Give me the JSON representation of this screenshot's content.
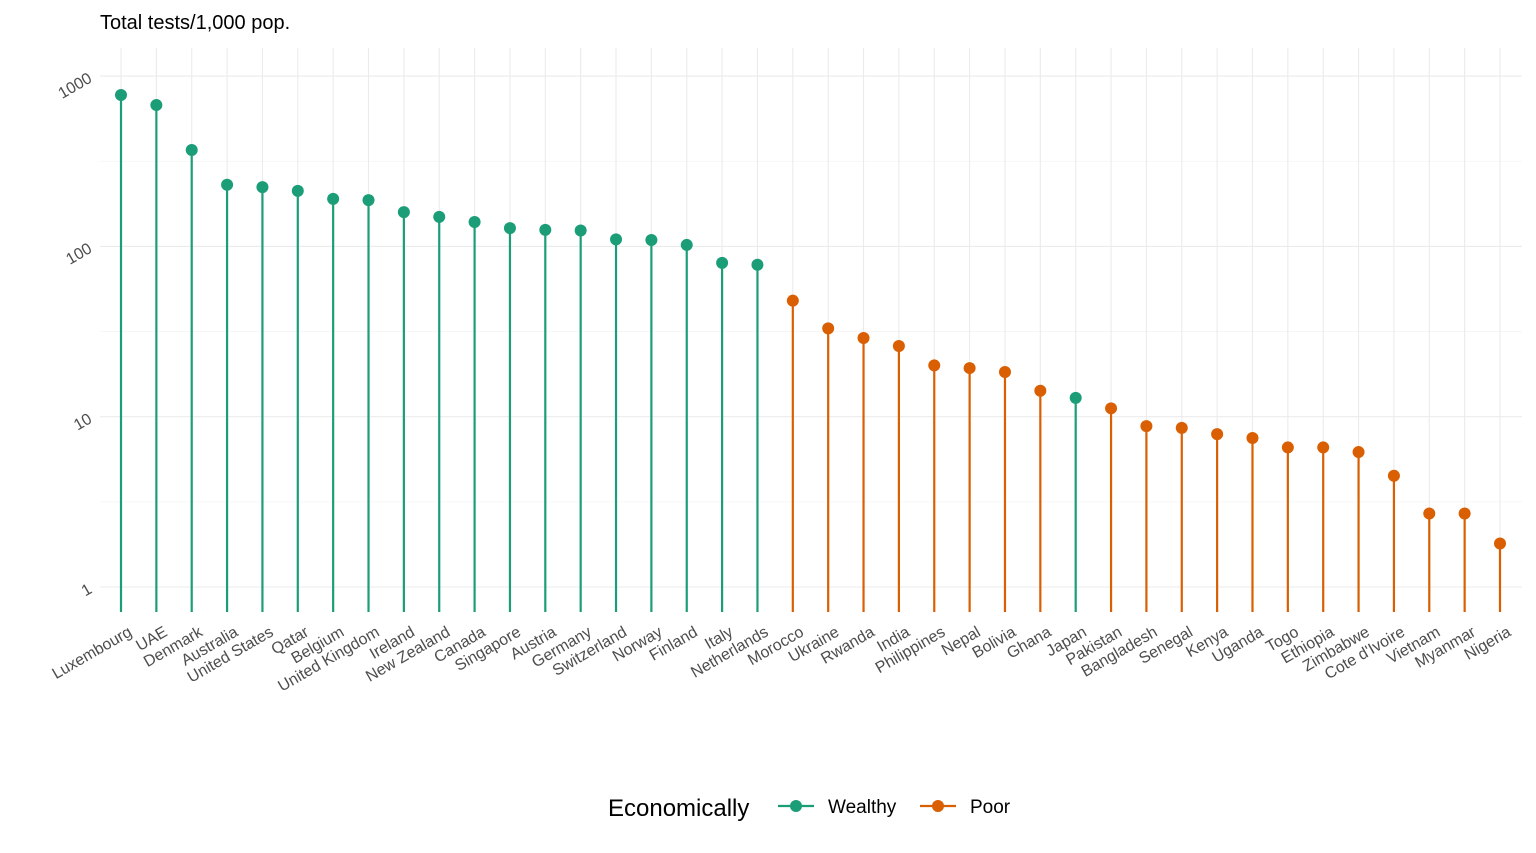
{
  "chart_data": {
    "type": "lollipop",
    "title": "Total tests/1,000 pop.",
    "xlabel": "",
    "ylabel": "",
    "y_scale": "log10",
    "ylim": [
      1,
      1000
    ],
    "y_ticks": [
      1,
      10,
      100,
      1000
    ],
    "y_tick_labels": [
      "1",
      "10",
      "100",
      "1000"
    ],
    "grid": true,
    "legend": {
      "title": "Economically",
      "placement": "bottom",
      "entries": [
        {
          "name": "Wealthy",
          "color": "#1B9E77"
        },
        {
          "name": "Poor",
          "color": "#D95F02"
        }
      ]
    },
    "categories": [
      "Luxembourg",
      "UAE",
      "Denmark",
      "Australia",
      "United States",
      "Qatar",
      "Belgium",
      "United Kingdom",
      "Ireland",
      "New Zealand",
      "Canada",
      "Singapore",
      "Austria",
      "Germany",
      "Switzerland",
      "Norway",
      "Finland",
      "Italy",
      "Netherlands",
      "Morocco",
      "Ukraine",
      "Rwanda",
      "India",
      "Philippines",
      "Nepal",
      "Bolivia",
      "Ghana",
      "Japan",
      "Pakistan",
      "Bangladesh",
      "Senegal",
      "Kenya",
      "Uganda",
      "Togo",
      "Ethiopia",
      "Zimbabwe",
      "Cote d'Ivoire",
      "Vietnam",
      "Myanmar",
      "Nigeria"
    ],
    "values": [
      774,
      676,
      368,
      230,
      223,
      212,
      190,
      187,
      159,
      149,
      139,
      128,
      125,
      124,
      110,
      109,
      102,
      80,
      78,
      48,
      33,
      29,
      26,
      20,
      19.3,
      18.3,
      14.2,
      12.9,
      11.2,
      8.8,
      8.6,
      7.9,
      7.5,
      6.6,
      6.6,
      6.2,
      4.5,
      2.7,
      2.7,
      1.8
    ],
    "group": [
      "Wealthy",
      "Wealthy",
      "Wealthy",
      "Wealthy",
      "Wealthy",
      "Wealthy",
      "Wealthy",
      "Wealthy",
      "Wealthy",
      "Wealthy",
      "Wealthy",
      "Wealthy",
      "Wealthy",
      "Wealthy",
      "Wealthy",
      "Wealthy",
      "Wealthy",
      "Wealthy",
      "Wealthy",
      "Poor",
      "Poor",
      "Poor",
      "Poor",
      "Poor",
      "Poor",
      "Poor",
      "Poor",
      "Wealthy",
      "Poor",
      "Poor",
      "Poor",
      "Poor",
      "Poor",
      "Poor",
      "Poor",
      "Poor",
      "Poor",
      "Poor",
      "Poor",
      "Poor"
    ]
  }
}
